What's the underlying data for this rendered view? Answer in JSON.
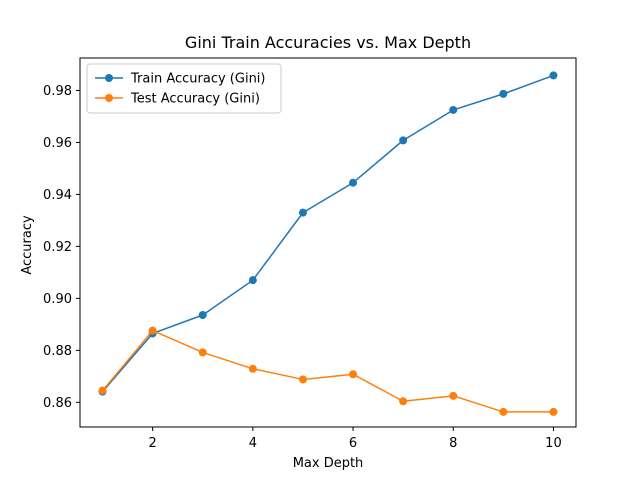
{
  "chart_data": {
    "type": "line",
    "title": "Gini Train Accuracies vs. Max Depth",
    "xlabel": "Max Depth",
    "ylabel": "Accuracy",
    "xlim": [
      0.55,
      10.45
    ],
    "ylim": [
      0.8505,
      0.9925
    ],
    "xticks": [
      2,
      4,
      6,
      8,
      10
    ],
    "yticks": [
      0.86,
      0.88,
      0.9,
      0.92,
      0.94,
      0.96,
      0.98
    ],
    "ytick_labels": [
      "0.86",
      "0.88",
      "0.90",
      "0.92",
      "0.94",
      "0.96",
      "0.98"
    ],
    "x": [
      1,
      2,
      3,
      4,
      5,
      6,
      7,
      8,
      9,
      10
    ],
    "series": [
      {
        "name": "Train Accuracy (Gini)",
        "color": "#1f77b4",
        "values": [
          0.8641,
          0.8865,
          0.8936,
          0.907,
          0.933,
          0.9445,
          0.9608,
          0.9725,
          0.9787,
          0.9858
        ]
      },
      {
        "name": "Test Accuracy (Gini)",
        "color": "#ff7f0e",
        "values": [
          0.8645,
          0.8876,
          0.8792,
          0.8729,
          0.8688,
          0.8708,
          0.8604,
          0.8625,
          0.8563,
          0.8563
        ]
      }
    ],
    "legend_position": "top-left",
    "grid": false
  }
}
